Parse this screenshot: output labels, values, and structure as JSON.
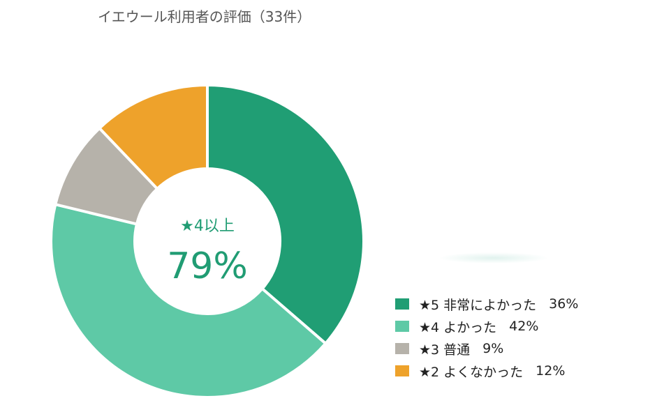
{
  "chart_data": {
    "type": "pie",
    "title": "イエウール利用者の評価（33件）",
    "center_label": "★4以上",
    "center_value": "79%",
    "slices": [
      {
        "label": "★5 非常によかった",
        "value": 36,
        "value_label": "36%",
        "color": "#209e74"
      },
      {
        "label": "★4 よかった",
        "value": 42,
        "value_label": "42%",
        "color": "#5ec9a6"
      },
      {
        "label": "★3 普通",
        "value": 9,
        "value_label": "9%",
        "color": "#b6b2aa"
      },
      {
        "label": "★2 よくなかった",
        "value": 12,
        "value_label": "12%",
        "color": "#eea22b"
      }
    ]
  }
}
